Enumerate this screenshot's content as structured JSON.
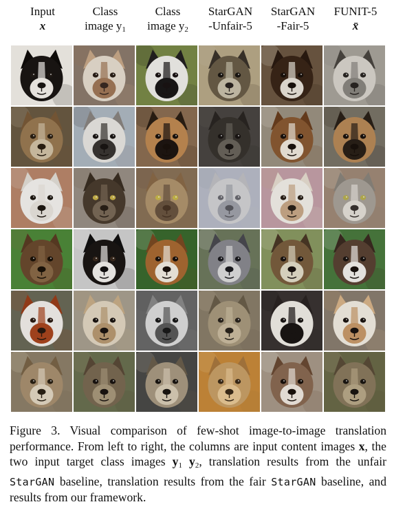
{
  "headers": [
    {
      "line1": "Input",
      "line2": "x",
      "sub": ""
    },
    {
      "line1": "Class",
      "line2": "image y",
      "sub": "1"
    },
    {
      "line1": "Class",
      "line2": "image y",
      "sub": "2"
    },
    {
      "line1": "StarGAN",
      "line2": "-Unfair-5",
      "sub": ""
    },
    {
      "line1": "StarGAN",
      "line2": "-Fair-5",
      "sub": ""
    },
    {
      "line1": "FUNIT-5",
      "line2": "x̄",
      "sub": ""
    }
  ],
  "caption": {
    "label": "Figure 3.",
    "text_a": "Visual comparison of few-shot image-to-image translation performance. From left to right, the columns are input content images ",
    "x": "x",
    "text_b": ", the two input target class images ",
    "y1": "y",
    "y1_sub": "1",
    "y2": "y",
    "y2_sub": "2",
    "text_c": ", translation results from the unfair ",
    "stargan1": "StarGAN",
    "text_d": " baseline, translation results from the fair ",
    "stargan2": "StarGAN",
    "text_e": " baseline, and results from our framework."
  },
  "tiles": [
    [
      {
        "bg": "#f2eee8",
        "fur": "#1a1614",
        "accent": "#f4f0ea",
        "ear": "#0f0c0a",
        "eye": "#201a16",
        "nose": "#1a1614"
      },
      {
        "bg": "#8c7b6d",
        "fur": "#e6dccf",
        "accent": "#a07858",
        "ear": "#c8a888",
        "eye": "#2a1e16",
        "nose": "#3a2a22"
      },
      {
        "bg": "#7a8a48",
        "fur": "#f0eeea",
        "accent": "#1a1818",
        "ear": "#222020",
        "eye": "#1a1414",
        "nose": "#1a1414"
      },
      {
        "bg": "#b8a988",
        "fur": "#6a5d48",
        "accent": "#c8c0aa",
        "ear": "#3a322a",
        "eye": "#1a1612",
        "nose": "#2a2420"
      },
      {
        "bg": "#6d5842",
        "fur": "#3a2618",
        "accent": "#e8e2d8",
        "ear": "#2a1a10",
        "eye": "#1a120c",
        "nose": "#1a120c"
      },
      {
        "bg": "#a8a49c",
        "fur": "#d8d4cc",
        "accent": "#8a8680",
        "ear": "#4a4640",
        "eye": "#2a2622",
        "nose": "#2a2622"
      }
    ],
    [
      {
        "bg": "#6a5a42",
        "fur": "#9a7a52",
        "accent": "#d2c2a6",
        "ear": "#7a5a38",
        "eye": "#2a1e12",
        "nose": "#2a1e12"
      },
      {
        "bg": "#aeb8c2",
        "fur": "#e8e6e2",
        "accent": "#3a3632",
        "ear": "#8a8480",
        "eye": "#1a1614",
        "nose": "#1a1614"
      },
      {
        "bg": "#8c6e52",
        "fur": "#c08a52",
        "accent": "#1e1612",
        "ear": "#2a1e14",
        "eye": "#1a120c",
        "nose": "#1a120c"
      },
      {
        "bg": "#4a4642",
        "fur": "#38332e",
        "accent": "#6a645c",
        "ear": "#2a2622",
        "eye": "#1a1614",
        "nose": "#1a1614"
      },
      {
        "bg": "#9c9282",
        "fur": "#8a5a32",
        "accent": "#f0e8dc",
        "ear": "#6a3e1e",
        "eye": "#1a120c",
        "nose": "#1a120c"
      },
      {
        "bg": "#7a7468",
        "fur": "#b88a58",
        "accent": "#2a2018",
        "ear": "#2a2018",
        "eye": "#1a120c",
        "nose": "#1a120c"
      }
    ],
    [
      {
        "bg": "#b9866b",
        "fur": "#f4f2ee",
        "accent": "#e8e4de",
        "ear": "#e2ded6",
        "eye": "#1e1812",
        "nose": "#1e1812"
      },
      {
        "bg": "#9a9086",
        "fur": "#4a3c2e",
        "accent": "#7a6a58",
        "ear": "#3a2e22",
        "eye": "#c8b24a",
        "nose": "#2a2018"
      },
      {
        "bg": "#8a7258",
        "fur": "#b0946e",
        "accent": "#6a5440",
        "ear": "#8a6a48",
        "eye": "#c8b84a",
        "nose": "#4a3626"
      },
      {
        "bg": "#b8bcc8",
        "fur": "#d2d2d4",
        "accent": "#a0a2aa",
        "ear": "#c0c0c4",
        "eye": "#6a6a70",
        "nose": "#5a5a60"
      },
      {
        "bg": "#c4a0a8",
        "fur": "#f2eee8",
        "accent": "#c8a888",
        "ear": "#e6dcd0",
        "eye": "#2a2018",
        "nose": "#2a2018"
      },
      {
        "bg": "#a08a78",
        "fur": "#a8a29a",
        "accent": "#e4e0d8",
        "ear": "#8a847c",
        "eye": "#b8b050",
        "nose": "#3a3430"
      }
    ],
    [
      {
        "bg": "#4e8a3a",
        "fur": "#6a4a2e",
        "accent": "#8a6a48",
        "ear": "#5a3c24",
        "eye": "#1a1208",
        "nose": "#1a1208"
      },
      {
        "bg": "#d2d2d2",
        "fur": "#1a1614",
        "accent": "#f2f0ec",
        "ear": "#121010",
        "eye": "#3a2a1e",
        "nose": "#121010"
      },
      {
        "bg": "#3a6a2e",
        "fur": "#a86a32",
        "accent": "#f2ece2",
        "ear": "#7a4a22",
        "eye": "#1a120c",
        "nose": "#1a120c"
      },
      {
        "bg": "#6e7a5e",
        "fur": "#8a8a90",
        "accent": "#dcdcdc",
        "ear": "#4a4a50",
        "eye": "#1a1a1e",
        "nose": "#1a1a1e"
      },
      {
        "bg": "#8a9a62",
        "fur": "#7a5e3e",
        "accent": "#e2dcc8",
        "ear": "#4a3826",
        "eye": "#1a1410",
        "nose": "#1a1410"
      },
      {
        "bg": "#4a7a3e",
        "fur": "#5a4234",
        "accent": "#f2f0ec",
        "ear": "#3a2a20",
        "eye": "#1a1410",
        "nose": "#1a1410"
      }
    ],
    [
      {
        "bg": "#6a6a58",
        "fur": "#f2eeea",
        "accent": "#a8461e",
        "ear": "#9a3e1a",
        "eye": "#2a1a10",
        "nose": "#2a1a10"
      },
      {
        "bg": "#a8a090",
        "fur": "#e2d6c2",
        "accent": "#b89a72",
        "ear": "#c8ae88",
        "eye": "#1a1410",
        "nose": "#1a1410"
      },
      {
        "bg": "#6a6a6a",
        "fur": "#dcdcdc",
        "accent": "#5a5a5a",
        "ear": "#8a8a8a",
        "eye": "#1a1a1a",
        "nose": "#1a1a1a"
      },
      {
        "bg": "#8a7e6a",
        "fur": "#a89a7e",
        "accent": "#cabca0",
        "ear": "#6a5e4a",
        "eye": "#2a241c",
        "nose": "#2a241c"
      },
      {
        "bg": "#3a3432",
        "fur": "#f0ece6",
        "accent": "#1a1614",
        "ear": "#2a2422",
        "eye": "#1a1614",
        "nose": "#1a1614"
      },
      {
        "bg": "#8a7e70",
        "fur": "#f2ece2",
        "accent": "#c89a6a",
        "ear": "#d8b48a",
        "eye": "#1a1410",
        "nose": "#1a1410"
      }
    ],
    [
      {
        "bg": "#8e806a",
        "fur": "#a89070",
        "accent": "#e2d6c2",
        "ear": "#7a6448",
        "eye": "#2a2014",
        "nose": "#2a2014"
      },
      {
        "bg": "#6a7050",
        "fur": "#7a6a52",
        "accent": "#a8987c",
        "ear": "#5a4a38",
        "eye": "#1a1410",
        "nose": "#1a1410"
      },
      {
        "bg": "#4a4a48",
        "fur": "#a89a82",
        "accent": "#d8ccb6",
        "ear": "#6a5e4c",
        "eye": "#1a1612",
        "nose": "#1a1612"
      },
      {
        "bg": "#c88a3a",
        "fur": "#c8a068",
        "accent": "#e8c896",
        "ear": "#a8783e",
        "eye": "#3a2a18",
        "nose": "#3a2a18"
      },
      {
        "bg": "#a89a8a",
        "fur": "#8a6a52",
        "accent": "#f0e8e0",
        "ear": "#6a4a34",
        "eye": "#1a120c",
        "nose": "#1a120c"
      },
      {
        "bg": "#6a6a48",
        "fur": "#8a7a5e",
        "accent": "#b8a888",
        "ear": "#5a4c38",
        "eye": "#1a1612",
        "nose": "#1a1612"
      }
    ]
  ]
}
